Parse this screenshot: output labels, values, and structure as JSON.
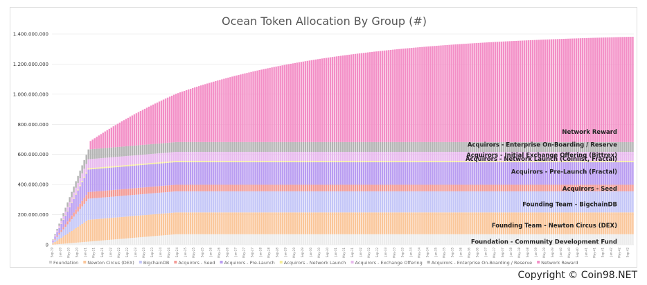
{
  "chart_data": {
    "type": "bar",
    "stacked": true,
    "title": "Ocean Token Allocation By Group (#)",
    "xlabel": "",
    "ylabel": "",
    "ylim": [
      0,
      1400000000
    ],
    "yticks": [
      {
        "value": 0,
        "label": "0"
      },
      {
        "value": 200000000,
        "label": "200.000.000"
      },
      {
        "value": 400000000,
        "label": "400.000.000"
      },
      {
        "value": 600000000,
        "label": "600.000.000"
      },
      {
        "value": 800000000,
        "label": "800.000.000"
      },
      {
        "value": 1000000000,
        "label": "1.000.000.000"
      },
      {
        "value": 1200000000,
        "label": "1.200.000.000"
      },
      {
        "value": 1400000000,
        "label": "1.400.000.000"
      }
    ],
    "grid": true,
    "legend_position": "bottom",
    "x_start_month": 9,
    "x_start_year": 19,
    "num_periods": 279,
    "series": [
      {
        "name": "Foundation",
        "color": "#ececec",
        "ramp_end": 60,
        "final": 70000000,
        "ramp_shape": "linear"
      },
      {
        "name": "Newton Circus (DEX)",
        "color": "#fac69a",
        "ramp_end": 18,
        "final": 145000000,
        "ramp_shape": "linear"
      },
      {
        "name": "BigchainDB",
        "color": "#c3c5f7",
        "ramp_end": 18,
        "final": 140000000,
        "ramp_shape": "linear"
      },
      {
        "name": "Acquirors - Seed",
        "color": "#f39b96",
        "ramp_end": 18,
        "final": 44000000,
        "ramp_shape": "linear"
      },
      {
        "name": "Acquirors - Pre-Launch",
        "color": "#b99cf1",
        "ramp_end": 18,
        "final": 150000000,
        "ramp_shape": "linear"
      },
      {
        "name": "Acquirors - Network Launch",
        "color": "#f6ee9a",
        "ramp_end": 18,
        "final": 8000000,
        "ramp_shape": "linear"
      },
      {
        "name": "Acquirors - Exchange Offering",
        "color": "#e8b9ee",
        "ramp_end": 18,
        "final": 60000000,
        "ramp_shape": "linear"
      },
      {
        "name": "Acquirors - Enterprise On-Boarding / Reserve",
        "color": "#b4b4b4",
        "ramp_end": 18,
        "final": 65000000,
        "ramp_shape": "linear"
      },
      {
        "name": "Network Reward",
        "color": "#f38ec6",
        "ramp_end": 279,
        "final": 700000000,
        "ramp_shape": "halflife",
        "start_at": 18,
        "start_value": 55000000
      }
    ],
    "annotations": [
      {
        "text": "Network Reward",
        "value": 750000000
      },
      {
        "text": "Acquirors - Enterprise On-Boarding / Reserve",
        "value": 665000000
      },
      {
        "text": "Acquirors - Initial Exchange Offering (Bittrex)",
        "value": 597000000
      },
      {
        "text": "Acquirors - Network Launch (Coinlist, Fractal)",
        "value": 570000000
      },
      {
        "text": "Acquirors - Pre-Launch (Fractal)",
        "value": 487000000
      },
      {
        "text": "Acquirors - Seed",
        "value": 373000000
      },
      {
        "text": "Founding Team - BigchainDB",
        "value": 270000000
      },
      {
        "text": "Founding Team - Newton Circus (DEX)",
        "value": 128000000
      },
      {
        "text": "Foundation - Community Development Fund",
        "value": 20000000
      }
    ]
  },
  "footer": {
    "copyright": "Copyright © Coin98.NET"
  }
}
